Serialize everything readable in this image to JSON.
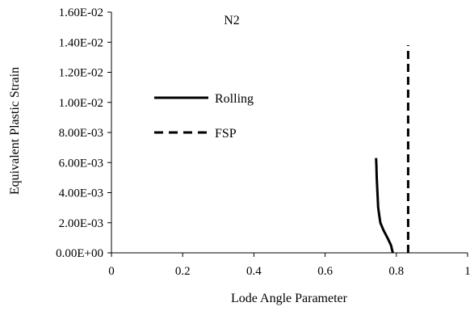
{
  "chart_data": {
    "type": "line",
    "title": "N2",
    "xlabel": "Lode Angle Parameter",
    "ylabel": "Equivalent Plastic Strain",
    "xlim": [
      0,
      1
    ],
    "ylim": [
      0,
      0.016
    ],
    "x_ticks": [
      0,
      0.2,
      0.4,
      0.6,
      0.8,
      1
    ],
    "x_tick_labels": [
      "0",
      "0.2",
      "0.4",
      "0.6",
      "0.8",
      "1"
    ],
    "y_ticks": [
      0,
      0.002,
      0.004,
      0.006,
      0.008,
      0.01,
      0.012,
      0.014,
      0.016
    ],
    "y_tick_labels": [
      "0.00E+00",
      "2.00E-03",
      "4.00E-03",
      "6.00E-03",
      "8.00E-03",
      "1.00E-02",
      "1.20E-02",
      "1.40E-02",
      "1.60E-02"
    ],
    "grid": false,
    "legend_position": "left",
    "series": [
      {
        "name": "Rolling",
        "style": "solid",
        "color": "#000000",
        "x": [
          0.79,
          0.785,
          0.775,
          0.764,
          0.755,
          0.752,
          0.749,
          0.747,
          0.745,
          0.744,
          0.743
        ],
        "y": [
          0.0,
          0.0005,
          0.001,
          0.0015,
          0.002,
          0.0025,
          0.003,
          0.004,
          0.005,
          0.0058,
          0.0063
        ]
      },
      {
        "name": "FSP",
        "style": "dashed",
        "color": "#000000",
        "x": [
          0.833,
          0.833
        ],
        "y": [
          0.0,
          0.0138
        ]
      }
    ]
  }
}
